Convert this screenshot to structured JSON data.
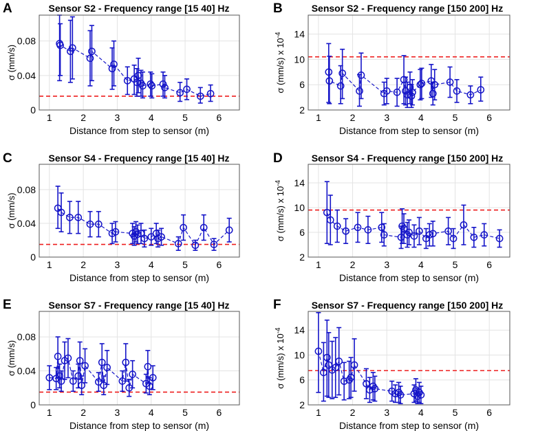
{
  "figure": {
    "x_ticks": [
      "1",
      "2",
      "3",
      "4",
      "5",
      "6"
    ],
    "colors": {
      "data": "#1414c8",
      "threshold": "#ee1c1c",
      "grid": "#e3e3e3"
    }
  },
  "chart_data": [
    {
      "panel": "A",
      "type": "scatter",
      "title": "Sensor S2 - Frequency range [15 40] Hz",
      "xlabel": "Distance from step to sensor (m)",
      "ylabel": "σ (mm/s)",
      "ylabel_suffix": "",
      "xlim": [
        0.7,
        6.6
      ],
      "ylim": [
        0,
        0.11
      ],
      "yticks": [
        0,
        0.04,
        0.08
      ],
      "ytick_labels": [
        "0",
        "0.04",
        "0.08"
      ],
      "threshold": 0.016,
      "points": [
        {
          "x": 1.3,
          "y": 0.077,
          "lo": 0.034,
          "hi": 0.11
        },
        {
          "x": 1.32,
          "y": 0.075,
          "lo": 0.04,
          "hi": 0.1
        },
        {
          "x": 1.62,
          "y": 0.068,
          "lo": 0.032,
          "hi": 0.104
        },
        {
          "x": 1.68,
          "y": 0.072,
          "lo": 0.036,
          "hi": 0.108
        },
        {
          "x": 2.2,
          "y": 0.06,
          "lo": 0.028,
          "hi": 0.092
        },
        {
          "x": 2.25,
          "y": 0.068,
          "lo": 0.034,
          "hi": 0.098
        },
        {
          "x": 2.85,
          "y": 0.048,
          "lo": 0.024,
          "hi": 0.072
        },
        {
          "x": 2.9,
          "y": 0.053,
          "lo": 0.028,
          "hi": 0.08
        },
        {
          "x": 3.3,
          "y": 0.034,
          "lo": 0.018,
          "hi": 0.05
        },
        {
          "x": 3.5,
          "y": 0.036,
          "lo": 0.018,
          "hi": 0.052
        },
        {
          "x": 3.58,
          "y": 0.032,
          "lo": 0.016,
          "hi": 0.048
        },
        {
          "x": 3.62,
          "y": 0.04,
          "lo": 0.02,
          "hi": 0.06
        },
        {
          "x": 3.7,
          "y": 0.031,
          "lo": 0.016,
          "hi": 0.046
        },
        {
          "x": 3.75,
          "y": 0.028,
          "lo": 0.014,
          "hi": 0.044
        },
        {
          "x": 3.98,
          "y": 0.03,
          "lo": 0.016,
          "hi": 0.044
        },
        {
          "x": 4.02,
          "y": 0.028,
          "lo": 0.014,
          "hi": 0.042
        },
        {
          "x": 4.35,
          "y": 0.03,
          "lo": 0.016,
          "hi": 0.044
        },
        {
          "x": 4.4,
          "y": 0.026,
          "lo": 0.014,
          "hi": 0.04
        },
        {
          "x": 4.85,
          "y": 0.02,
          "lo": 0.01,
          "hi": 0.032
        },
        {
          "x": 5.05,
          "y": 0.024,
          "lo": 0.012,
          "hi": 0.036
        },
        {
          "x": 5.45,
          "y": 0.016,
          "lo": 0.008,
          "hi": 0.026
        },
        {
          "x": 5.75,
          "y": 0.019,
          "lo": 0.01,
          "hi": 0.029
        }
      ]
    },
    {
      "panel": "B",
      "type": "scatter",
      "title": "Sensor S2 - Frequency range [150 200] Hz",
      "xlabel": "Distance from step to sensor (m)",
      "ylabel": "σ (mm/s) x 10",
      "ylabel_suffix": "-4",
      "xlim": [
        0.7,
        6.6
      ],
      "ylim": [
        2,
        17
      ],
      "yticks": [
        2,
        6,
        10,
        14
      ],
      "ytick_labels": [
        "2",
        "6",
        "10",
        "14"
      ],
      "threshold": 10.4,
      "points": [
        {
          "x": 1.3,
          "y": 8.0,
          "lo": 3.2,
          "hi": 12.5
        },
        {
          "x": 1.32,
          "y": 6.6,
          "lo": 3.0,
          "hi": 10.5
        },
        {
          "x": 1.65,
          "y": 5.8,
          "lo": 3.0,
          "hi": 9.0
        },
        {
          "x": 1.7,
          "y": 7.8,
          "lo": 3.8,
          "hi": 11.6
        },
        {
          "x": 2.2,
          "y": 5.0,
          "lo": 2.6,
          "hi": 7.6
        },
        {
          "x": 2.25,
          "y": 7.5,
          "lo": 3.8,
          "hi": 11.0
        },
        {
          "x": 2.92,
          "y": 4.6,
          "lo": 2.8,
          "hi": 6.4
        },
        {
          "x": 3.0,
          "y": 5.0,
          "lo": 3.0,
          "hi": 7.0
        },
        {
          "x": 3.3,
          "y": 4.8,
          "lo": 2.6,
          "hi": 7.0
        },
        {
          "x": 3.5,
          "y": 6.8,
          "lo": 3.0,
          "hi": 10.6
        },
        {
          "x": 3.55,
          "y": 5.0,
          "lo": 2.8,
          "hi": 7.2
        },
        {
          "x": 3.6,
          "y": 4.4,
          "lo": 2.4,
          "hi": 6.4
        },
        {
          "x": 3.68,
          "y": 5.6,
          "lo": 3.0,
          "hi": 8.0
        },
        {
          "x": 3.72,
          "y": 4.2,
          "lo": 2.4,
          "hi": 6.0
        },
        {
          "x": 3.75,
          "y": 4.8,
          "lo": 2.8,
          "hi": 6.8
        },
        {
          "x": 3.98,
          "y": 6.0,
          "lo": 3.6,
          "hi": 8.4
        },
        {
          "x": 4.02,
          "y": 6.2,
          "lo": 3.8,
          "hi": 8.6
        },
        {
          "x": 4.3,
          "y": 6.6,
          "lo": 4.0,
          "hi": 9.2
        },
        {
          "x": 4.35,
          "y": 4.6,
          "lo": 2.8,
          "hi": 6.4
        },
        {
          "x": 4.4,
          "y": 6.0,
          "lo": 3.6,
          "hi": 8.4
        },
        {
          "x": 4.85,
          "y": 6.4,
          "lo": 4.0,
          "hi": 8.8
        },
        {
          "x": 5.05,
          "y": 5.0,
          "lo": 3.2,
          "hi": 6.8
        },
        {
          "x": 5.45,
          "y": 4.4,
          "lo": 3.0,
          "hi": 5.8
        },
        {
          "x": 5.75,
          "y": 5.2,
          "lo": 3.4,
          "hi": 7.2
        }
      ]
    },
    {
      "panel": "C",
      "type": "scatter",
      "title": "Sensor S4 - Frequency range [15 40] Hz",
      "xlabel": "Distance from step to sensor (m)",
      "ylabel": "σ (mm/s)",
      "ylabel_suffix": "",
      "xlim": [
        0.7,
        6.6
      ],
      "ylim": [
        0,
        0.11
      ],
      "yticks": [
        0,
        0.04,
        0.08
      ],
      "ytick_labels": [
        "0",
        "0.04",
        "0.08"
      ],
      "threshold": 0.015,
      "points": [
        {
          "x": 1.25,
          "y": 0.058,
          "lo": 0.034,
          "hi": 0.084
        },
        {
          "x": 1.35,
          "y": 0.053,
          "lo": 0.03,
          "hi": 0.076
        },
        {
          "x": 1.6,
          "y": 0.047,
          "lo": 0.028,
          "hi": 0.066
        },
        {
          "x": 1.85,
          "y": 0.047,
          "lo": 0.028,
          "hi": 0.066
        },
        {
          "x": 2.2,
          "y": 0.039,
          "lo": 0.024,
          "hi": 0.054
        },
        {
          "x": 2.45,
          "y": 0.039,
          "lo": 0.024,
          "hi": 0.054
        },
        {
          "x": 2.85,
          "y": 0.028,
          "lo": 0.016,
          "hi": 0.04
        },
        {
          "x": 2.95,
          "y": 0.03,
          "lo": 0.018,
          "hi": 0.042
        },
        {
          "x": 3.45,
          "y": 0.028,
          "lo": 0.016,
          "hi": 0.04
        },
        {
          "x": 3.5,
          "y": 0.025,
          "lo": 0.014,
          "hi": 0.036
        },
        {
          "x": 3.55,
          "y": 0.03,
          "lo": 0.018,
          "hi": 0.042
        },
        {
          "x": 3.6,
          "y": 0.027,
          "lo": 0.016,
          "hi": 0.038
        },
        {
          "x": 3.7,
          "y": 0.028,
          "lo": 0.016,
          "hi": 0.04
        },
        {
          "x": 3.8,
          "y": 0.022,
          "lo": 0.012,
          "hi": 0.032
        },
        {
          "x": 4.0,
          "y": 0.024,
          "lo": 0.014,
          "hi": 0.034
        },
        {
          "x": 4.15,
          "y": 0.028,
          "lo": 0.016,
          "hi": 0.04
        },
        {
          "x": 4.2,
          "y": 0.022,
          "lo": 0.012,
          "hi": 0.032
        },
        {
          "x": 4.3,
          "y": 0.024,
          "lo": 0.014,
          "hi": 0.034
        },
        {
          "x": 4.8,
          "y": 0.016,
          "lo": 0.008,
          "hi": 0.024
        },
        {
          "x": 4.95,
          "y": 0.035,
          "lo": 0.02,
          "hi": 0.05
        },
        {
          "x": 5.3,
          "y": 0.014,
          "lo": 0.008,
          "hi": 0.02
        },
        {
          "x": 5.55,
          "y": 0.035,
          "lo": 0.02,
          "hi": 0.05
        },
        {
          "x": 5.85,
          "y": 0.015,
          "lo": 0.008,
          "hi": 0.022
        },
        {
          "x": 6.3,
          "y": 0.032,
          "lo": 0.018,
          "hi": 0.046
        }
      ]
    },
    {
      "panel": "D",
      "type": "scatter",
      "title": "Sensor S4 - Frequency range [150 200] Hz",
      "xlabel": "Distance from step to sensor (m)",
      "ylabel": "σ (mm/s) x 10",
      "ylabel_suffix": "-4",
      "xlim": [
        0.7,
        6.6
      ],
      "ylim": [
        2,
        17
      ],
      "yticks": [
        2,
        6,
        10,
        14
      ],
      "ytick_labels": [
        "2",
        "6",
        "10",
        "14"
      ],
      "threshold": 9.6,
      "points": [
        {
          "x": 1.25,
          "y": 9.2,
          "lo": 4.2,
          "hi": 14.2
        },
        {
          "x": 1.35,
          "y": 8.0,
          "lo": 4.0,
          "hi": 12.0
        },
        {
          "x": 1.55,
          "y": 7.0,
          "lo": 4.4,
          "hi": 9.6
        },
        {
          "x": 1.8,
          "y": 6.2,
          "lo": 4.2,
          "hi": 8.2
        },
        {
          "x": 2.15,
          "y": 6.8,
          "lo": 4.4,
          "hi": 9.2
        },
        {
          "x": 2.45,
          "y": 6.4,
          "lo": 4.2,
          "hi": 8.6
        },
        {
          "x": 2.85,
          "y": 6.8,
          "lo": 4.4,
          "hi": 9.2
        },
        {
          "x": 2.92,
          "y": 5.6,
          "lo": 3.8,
          "hi": 7.4
        },
        {
          "x": 3.42,
          "y": 5.2,
          "lo": 3.4,
          "hi": 7.0
        },
        {
          "x": 3.45,
          "y": 7.0,
          "lo": 4.2,
          "hi": 9.8
        },
        {
          "x": 3.5,
          "y": 6.6,
          "lo": 4.2,
          "hi": 9.0
        },
        {
          "x": 3.6,
          "y": 5.6,
          "lo": 3.6,
          "hi": 7.6
        },
        {
          "x": 3.65,
          "y": 6.0,
          "lo": 4.0,
          "hi": 8.0
        },
        {
          "x": 3.8,
          "y": 5.4,
          "lo": 3.6,
          "hi": 7.2
        },
        {
          "x": 3.95,
          "y": 6.2,
          "lo": 4.0,
          "hi": 8.4
        },
        {
          "x": 4.15,
          "y": 5.0,
          "lo": 3.4,
          "hi": 6.6
        },
        {
          "x": 4.25,
          "y": 5.6,
          "lo": 3.8,
          "hi": 7.4
        },
        {
          "x": 4.35,
          "y": 5.8,
          "lo": 3.8,
          "hi": 7.8
        },
        {
          "x": 4.8,
          "y": 6.2,
          "lo": 4.0,
          "hi": 8.4
        },
        {
          "x": 4.95,
          "y": 5.0,
          "lo": 3.4,
          "hi": 6.6
        },
        {
          "x": 5.25,
          "y": 7.2,
          "lo": 4.0,
          "hi": 10.4
        },
        {
          "x": 5.55,
          "y": 5.2,
          "lo": 3.6,
          "hi": 6.8
        },
        {
          "x": 5.85,
          "y": 5.6,
          "lo": 3.8,
          "hi": 7.4
        },
        {
          "x": 6.3,
          "y": 5.0,
          "lo": 3.6,
          "hi": 6.4
        }
      ]
    },
    {
      "panel": "E",
      "type": "scatter",
      "title": "Sensor S7 - Frequency range [15 40] Hz",
      "xlabel": "Distance from step to sensor (m)",
      "ylabel": "σ (mm/s)",
      "ylabel_suffix": "",
      "xlim": [
        0.7,
        6.6
      ],
      "ylim": [
        0,
        0.11
      ],
      "yticks": [
        0,
        0.04,
        0.08
      ],
      "ytick_labels": [
        "0",
        "0.04",
        "0.08"
      ],
      "threshold": 0.015,
      "points": [
        {
          "x": 1.0,
          "y": 0.032,
          "lo": 0.018,
          "hi": 0.046
        },
        {
          "x": 1.2,
          "y": 0.031,
          "lo": 0.018,
          "hi": 0.044
        },
        {
          "x": 1.25,
          "y": 0.057,
          "lo": 0.032,
          "hi": 0.08
        },
        {
          "x": 1.3,
          "y": 0.034,
          "lo": 0.02,
          "hi": 0.048
        },
        {
          "x": 1.35,
          "y": 0.028,
          "lo": 0.016,
          "hi": 0.04
        },
        {
          "x": 1.45,
          "y": 0.052,
          "lo": 0.03,
          "hi": 0.074
        },
        {
          "x": 1.55,
          "y": 0.055,
          "lo": 0.032,
          "hi": 0.078
        },
        {
          "x": 1.7,
          "y": 0.028,
          "lo": 0.016,
          "hi": 0.04
        },
        {
          "x": 1.85,
          "y": 0.034,
          "lo": 0.02,
          "hi": 0.048
        },
        {
          "x": 1.9,
          "y": 0.052,
          "lo": 0.03,
          "hi": 0.074
        },
        {
          "x": 1.95,
          "y": 0.023,
          "lo": 0.012,
          "hi": 0.034
        },
        {
          "x": 2.05,
          "y": 0.046,
          "lo": 0.026,
          "hi": 0.066
        },
        {
          "x": 2.45,
          "y": 0.027,
          "lo": 0.016,
          "hi": 0.038
        },
        {
          "x": 2.55,
          "y": 0.05,
          "lo": 0.028,
          "hi": 0.072
        },
        {
          "x": 2.6,
          "y": 0.023,
          "lo": 0.012,
          "hi": 0.034
        },
        {
          "x": 2.7,
          "y": 0.044,
          "lo": 0.024,
          "hi": 0.064
        },
        {
          "x": 3.15,
          "y": 0.028,
          "lo": 0.016,
          "hi": 0.04
        },
        {
          "x": 3.25,
          "y": 0.05,
          "lo": 0.028,
          "hi": 0.072
        },
        {
          "x": 3.35,
          "y": 0.02,
          "lo": 0.01,
          "hi": 0.03
        },
        {
          "x": 3.45,
          "y": 0.036,
          "lo": 0.02,
          "hi": 0.052
        },
        {
          "x": 3.85,
          "y": 0.025,
          "lo": 0.014,
          "hi": 0.036
        },
        {
          "x": 3.9,
          "y": 0.045,
          "lo": 0.026,
          "hi": 0.064
        },
        {
          "x": 3.95,
          "y": 0.022,
          "lo": 0.012,
          "hi": 0.032
        },
        {
          "x": 4.05,
          "y": 0.032,
          "lo": 0.018,
          "hi": 0.046
        }
      ]
    },
    {
      "panel": "F",
      "type": "scatter",
      "title": "Sensor S7 - Frequency range [150 200] Hz",
      "xlabel": "Distance from step to sensor (m)",
      "ylabel": "σ (mm/s) x 10",
      "ylabel_suffix": "-4",
      "xlim": [
        0.7,
        6.6
      ],
      "ylim": [
        2,
        17
      ],
      "yticks": [
        2,
        6,
        10,
        14
      ],
      "ytick_labels": [
        "2",
        "6",
        "10",
        "14"
      ],
      "threshold": 7.5,
      "points": [
        {
          "x": 1.0,
          "y": 10.6,
          "lo": 4.0,
          "hi": 16.8
        },
        {
          "x": 1.15,
          "y": 7.2,
          "lo": 2.6,
          "hi": 12.0
        },
        {
          "x": 1.25,
          "y": 9.6,
          "lo": 3.4,
          "hi": 15.6
        },
        {
          "x": 1.3,
          "y": 8.4,
          "lo": 3.2,
          "hi": 13.6
        },
        {
          "x": 1.4,
          "y": 7.6,
          "lo": 3.0,
          "hi": 12.2
        },
        {
          "x": 1.5,
          "y": 8.0,
          "lo": 3.2,
          "hi": 12.8
        },
        {
          "x": 1.6,
          "y": 9.0,
          "lo": 3.6,
          "hi": 14.4
        },
        {
          "x": 1.75,
          "y": 5.8,
          "lo": 2.8,
          "hi": 8.8
        },
        {
          "x": 1.9,
          "y": 6.0,
          "lo": 3.0,
          "hi": 9.0
        },
        {
          "x": 1.95,
          "y": 6.4,
          "lo": 3.2,
          "hi": 9.6
        },
        {
          "x": 2.05,
          "y": 8.4,
          "lo": 4.2,
          "hi": 12.6
        },
        {
          "x": 2.4,
          "y": 5.4,
          "lo": 3.0,
          "hi": 7.8
        },
        {
          "x": 2.5,
          "y": 4.4,
          "lo": 2.4,
          "hi": 6.4
        },
        {
          "x": 2.6,
          "y": 5.0,
          "lo": 2.8,
          "hi": 7.2
        },
        {
          "x": 2.65,
          "y": 4.6,
          "lo": 2.6,
          "hi": 6.6
        },
        {
          "x": 3.15,
          "y": 4.2,
          "lo": 2.6,
          "hi": 5.8
        },
        {
          "x": 3.25,
          "y": 3.8,
          "lo": 2.4,
          "hi": 5.2
        },
        {
          "x": 3.35,
          "y": 4.0,
          "lo": 2.4,
          "hi": 5.6
        },
        {
          "x": 3.4,
          "y": 3.6,
          "lo": 2.2,
          "hi": 5.0
        },
        {
          "x": 3.8,
          "y": 3.8,
          "lo": 2.4,
          "hi": 5.2
        },
        {
          "x": 3.85,
          "y": 4.4,
          "lo": 2.6,
          "hi": 6.2
        },
        {
          "x": 3.9,
          "y": 3.4,
          "lo": 2.2,
          "hi": 4.6
        },
        {
          "x": 3.95,
          "y": 4.0,
          "lo": 2.4,
          "hi": 5.6
        },
        {
          "x": 4.0,
          "y": 3.6,
          "lo": 2.2,
          "hi": 5.0
        }
      ]
    }
  ]
}
